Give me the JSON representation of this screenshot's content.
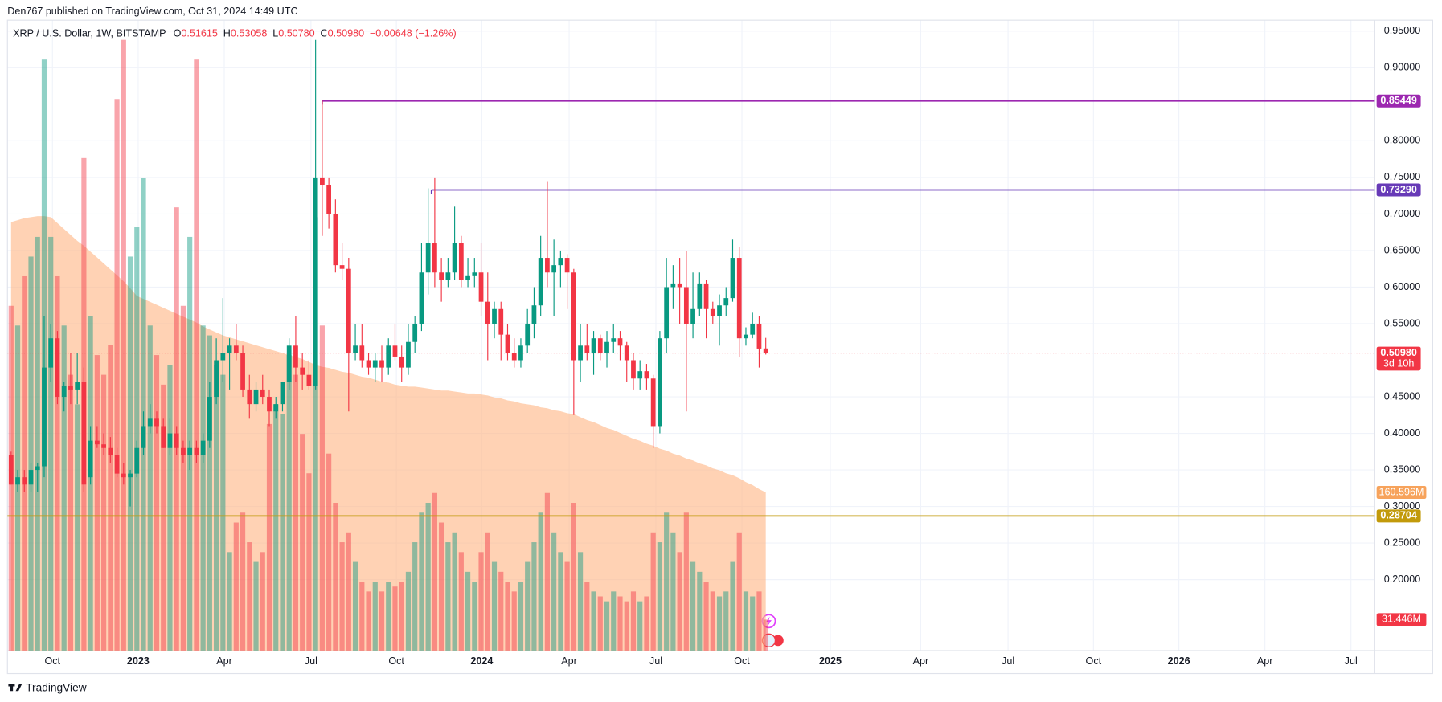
{
  "header": {
    "published": "Den767 published on TradingView.com, Oct 31, 2024 14:49 UTC",
    "footer": "TradingView"
  },
  "legend": {
    "symbol": "XRP / U.S. Dollar, 1W, BITSTAMP",
    "fields": [
      {
        "key": "O",
        "value": "0.51615"
      },
      {
        "key": "H",
        "value": "0.53058"
      },
      {
        "key": "L",
        "value": "0.50780"
      },
      {
        "key": "C",
        "value": "0.50980"
      }
    ],
    "change": "−0.00648 (−1.26%)"
  },
  "chart_data": {
    "type": "candlestick",
    "x": [
      0,
      1,
      2,
      3,
      4,
      5,
      6,
      7,
      8,
      9,
      10,
      11,
      12,
      13,
      14,
      15,
      16,
      17,
      18,
      19,
      20,
      21,
      22,
      23,
      24,
      25,
      26,
      27,
      28,
      29,
      30,
      31,
      32,
      33,
      34,
      35,
      36,
      37,
      38,
      39,
      40,
      41,
      42,
      43,
      44,
      45,
      46,
      47,
      48,
      49,
      50,
      51,
      52,
      53,
      54,
      55,
      56,
      57,
      58,
      59,
      60,
      61,
      62,
      63,
      64,
      65,
      66,
      67,
      68,
      69,
      70,
      71,
      72,
      73,
      74,
      75,
      76,
      77,
      78,
      79,
      80,
      81,
      82,
      83,
      84,
      85,
      86,
      87,
      88,
      89,
      90,
      91,
      92,
      93,
      94,
      95,
      96,
      97,
      98,
      99,
      100,
      101,
      102,
      103,
      104,
      105,
      106,
      107,
      108,
      109,
      110,
      111,
      112,
      113,
      114
    ],
    "open": [
      0.37,
      0.33,
      0.34,
      0.33,
      0.35,
      0.355,
      0.49,
      0.53,
      0.45,
      0.465,
      0.46,
      0.47,
      0.34,
      0.39,
      0.385,
      0.38,
      0.37,
      0.345,
      0.34,
      0.345,
      0.38,
      0.41,
      0.42,
      0.41,
      0.38,
      0.4,
      0.38,
      0.37,
      0.38,
      0.37,
      0.39,
      0.45,
      0.5,
      0.51,
      0.52,
      0.51,
      0.46,
      0.44,
      0.46,
      0.45,
      0.43,
      0.44,
      0.47,
      0.52,
      0.49,
      0.48,
      0.465,
      0.75,
      0.74,
      0.7,
      0.63,
      0.625,
      0.51,
      0.52,
      0.5,
      0.49,
      0.5,
      0.49,
      0.52,
      0.505,
      0.49,
      0.525,
      0.55,
      0.62,
      0.66,
      0.62,
      0.61,
      0.62,
      0.66,
      0.61,
      0.615,
      0.62,
      0.58,
      0.55,
      0.57,
      0.535,
      0.51,
      0.5,
      0.52,
      0.55,
      0.575,
      0.64,
      0.62,
      0.63,
      0.64,
      0.62,
      0.5,
      0.52,
      0.51,
      0.53,
      0.51,
      0.525,
      0.53,
      0.52,
      0.5,
      0.475,
      0.485,
      0.475,
      0.41,
      0.53,
      0.6,
      0.605,
      0.6,
      0.55,
      0.57,
      0.605,
      0.57,
      0.56,
      0.575,
      0.585,
      0.64,
      0.53,
      0.535,
      0.55,
      0.51615
    ],
    "high": [
      0.375,
      0.35,
      0.35,
      0.36,
      0.36,
      0.56,
      0.55,
      0.54,
      0.47,
      0.51,
      0.51,
      0.49,
      0.41,
      0.41,
      0.4,
      0.395,
      0.38,
      0.36,
      0.35,
      0.39,
      0.43,
      0.44,
      0.43,
      0.42,
      0.42,
      0.41,
      0.39,
      0.39,
      0.39,
      0.4,
      0.47,
      0.53,
      0.585,
      0.53,
      0.55,
      0.52,
      0.48,
      0.47,
      0.48,
      0.46,
      0.45,
      0.47,
      0.53,
      0.56,
      0.51,
      0.5,
      0.938,
      0.855,
      0.75,
      0.72,
      0.66,
      0.64,
      0.55,
      0.55,
      0.51,
      0.51,
      0.52,
      0.53,
      0.55,
      0.52,
      0.55,
      0.56,
      0.66,
      0.735,
      0.75,
      0.64,
      0.64,
      0.71,
      0.67,
      0.64,
      0.64,
      0.66,
      0.62,
      0.58,
      0.58,
      0.55,
      0.53,
      0.53,
      0.57,
      0.6,
      0.67,
      0.745,
      0.665,
      0.65,
      0.645,
      0.625,
      0.55,
      0.55,
      0.54,
      0.535,
      0.54,
      0.55,
      0.54,
      0.525,
      0.51,
      0.5,
      0.495,
      0.48,
      0.54,
      0.64,
      0.63,
      0.64,
      0.65,
      0.62,
      0.62,
      0.61,
      0.58,
      0.59,
      0.6,
      0.665,
      0.655,
      0.545,
      0.565,
      0.56,
      0.53058
    ],
    "low": [
      0.33,
      0.32,
      0.32,
      0.32,
      0.32,
      0.34,
      0.47,
      0.44,
      0.43,
      0.44,
      0.44,
      0.32,
      0.33,
      0.38,
      0.37,
      0.36,
      0.34,
      0.33,
      0.3,
      0.34,
      0.37,
      0.4,
      0.4,
      0.38,
      0.37,
      0.37,
      0.36,
      0.35,
      0.36,
      0.36,
      0.38,
      0.44,
      0.47,
      0.46,
      0.5,
      0.45,
      0.42,
      0.43,
      0.44,
      0.41,
      0.42,
      0.43,
      0.46,
      0.47,
      0.46,
      0.46,
      0.46,
      0.67,
      0.68,
      0.62,
      0.61,
      0.43,
      0.5,
      0.49,
      0.48,
      0.47,
      0.47,
      0.48,
      0.5,
      0.47,
      0.48,
      0.51,
      0.54,
      0.59,
      0.6,
      0.58,
      0.6,
      0.61,
      0.6,
      0.6,
      0.6,
      0.56,
      0.5,
      0.53,
      0.5,
      0.5,
      0.49,
      0.49,
      0.51,
      0.53,
      0.56,
      0.6,
      0.56,
      0.6,
      0.57,
      0.425,
      0.47,
      0.5,
      0.48,
      0.5,
      0.49,
      0.51,
      0.5,
      0.47,
      0.46,
      0.46,
      0.46,
      0.38,
      0.4,
      0.51,
      0.57,
      0.55,
      0.43,
      0.53,
      0.56,
      0.53,
      0.55,
      0.52,
      0.56,
      0.58,
      0.505,
      0.52,
      0.53,
      0.49,
      0.5078
    ],
    "close": [
      0.33,
      0.34,
      0.33,
      0.35,
      0.355,
      0.49,
      0.53,
      0.45,
      0.465,
      0.46,
      0.47,
      0.33,
      0.39,
      0.385,
      0.38,
      0.37,
      0.345,
      0.34,
      0.345,
      0.38,
      0.41,
      0.42,
      0.41,
      0.38,
      0.4,
      0.38,
      0.37,
      0.38,
      0.37,
      0.39,
      0.45,
      0.5,
      0.51,
      0.52,
      0.51,
      0.46,
      0.44,
      0.46,
      0.45,
      0.43,
      0.44,
      0.47,
      0.52,
      0.49,
      0.48,
      0.465,
      0.75,
      0.74,
      0.7,
      0.63,
      0.625,
      0.51,
      0.52,
      0.5,
      0.49,
      0.5,
      0.49,
      0.52,
      0.505,
      0.49,
      0.525,
      0.55,
      0.62,
      0.66,
      0.62,
      0.61,
      0.62,
      0.66,
      0.61,
      0.615,
      0.62,
      0.58,
      0.55,
      0.57,
      0.535,
      0.51,
      0.5,
      0.52,
      0.55,
      0.575,
      0.64,
      0.62,
      0.63,
      0.64,
      0.62,
      0.5,
      0.52,
      0.51,
      0.53,
      0.51,
      0.525,
      0.53,
      0.52,
      0.5,
      0.475,
      0.485,
      0.475,
      0.41,
      0.53,
      0.6,
      0.605,
      0.6,
      0.55,
      0.57,
      0.605,
      0.57,
      0.56,
      0.575,
      0.585,
      0.64,
      0.53,
      0.535,
      0.55,
      0.516,
      0.5098
    ],
    "up_color": "#089981",
    "down_color": "#f23645",
    "xlim": [
      -0.55,
      206
    ],
    "xticks": [
      {
        "value": 6.25,
        "label": "Oct"
      },
      {
        "value": 19.2,
        "label": "2023"
      },
      {
        "value": 32.2,
        "label": "Apr"
      },
      {
        "value": 45.3,
        "label": "Jul"
      },
      {
        "value": 58.2,
        "label": "Oct"
      },
      {
        "value": 71.1,
        "label": "2024"
      },
      {
        "value": 84.3,
        "label": "Apr"
      },
      {
        "value": 97.4,
        "label": "Jul"
      },
      {
        "value": 110.4,
        "label": "Oct"
      },
      {
        "value": 123.75,
        "label": "2025"
      },
      {
        "value": 137.4,
        "label": "Apr"
      },
      {
        "value": 150.6,
        "label": "Jul"
      },
      {
        "value": 163.5,
        "label": "Oct"
      },
      {
        "value": 176.4,
        "label": "2026"
      },
      {
        "value": 189.4,
        "label": "Apr"
      },
      {
        "value": 202.4,
        "label": "Jul"
      }
    ],
    "ylim": [
      0.103,
      0.965
    ],
    "yticks": [
      {
        "value": 0.2,
        "label": "0.20000"
      },
      {
        "value": 0.25,
        "label": "0.25000"
      },
      {
        "value": 0.3,
        "label": "0.30000"
      },
      {
        "value": 0.35,
        "label": "0.35000"
      },
      {
        "value": 0.4,
        "label": "0.40000"
      },
      {
        "value": 0.45,
        "label": "0.45000"
      },
      {
        "value": 0.55,
        "label": "0.55000"
      },
      {
        "value": 0.6,
        "label": "0.60000"
      },
      {
        "value": 0.65,
        "label": "0.65000"
      },
      {
        "value": 0.7,
        "label": "0.70000"
      },
      {
        "value": 0.75,
        "label": "0.75000"
      },
      {
        "value": 0.8,
        "label": "0.80000"
      },
      {
        "value": 0.9,
        "label": "0.90000"
      },
      {
        "value": 0.95,
        "label": "0.95000"
      }
    ],
    "grid": true,
    "volume": {
      "values": [
        350,
        330,
        380,
        400,
        420,
        600,
        420,
        380,
        330,
        280,
        250,
        500,
        340,
        300,
        280,
        310,
        560,
        620,
        400,
        430,
        480,
        330,
        300,
        270,
        290,
        450,
        350,
        420,
        600,
        330,
        320,
        290,
        280,
        100,
        130,
        140,
        110,
        90,
        100,
        230,
        250,
        240,
        300,
        280,
        220,
        180,
        440,
        330,
        200,
        150,
        110,
        120,
        90,
        70,
        60,
        70,
        60,
        70,
        65,
        70,
        80,
        110,
        140,
        150,
        160,
        130,
        110,
        120,
        100,
        80,
        70,
        100,
        120,
        90,
        80,
        70,
        60,
        70,
        90,
        110,
        140,
        160,
        120,
        100,
        90,
        150,
        100,
        70,
        60,
        55,
        50,
        60,
        55,
        50,
        60,
        50,
        55,
        120,
        110,
        140,
        120,
        100,
        140,
        90,
        80,
        70,
        60,
        55,
        60,
        90,
        120,
        60,
        55,
        60,
        31.446
      ],
      "ma": [
        435,
        437,
        439,
        440,
        441,
        441,
        440,
        434,
        428,
        422,
        416,
        411,
        405,
        399,
        393,
        387,
        381,
        375,
        368,
        360,
        357,
        354,
        351,
        348,
        345,
        342,
        339,
        336,
        333,
        329,
        326,
        323,
        320,
        318,
        316,
        314,
        312,
        310,
        308,
        306,
        304,
        302,
        300,
        298,
        296,
        293,
        290,
        288,
        287,
        285,
        283,
        282,
        280,
        278,
        277,
        275,
        273,
        272,
        270,
        269,
        268,
        268,
        267,
        266,
        265,
        264,
        264,
        263,
        262,
        261,
        261,
        260,
        259,
        257,
        256,
        254,
        253,
        251,
        250,
        249,
        247,
        246,
        244,
        243,
        241,
        240,
        237,
        234,
        232,
        229,
        226,
        224,
        221,
        218,
        215,
        213,
        210,
        208,
        205,
        203,
        200,
        198,
        195,
        193,
        190,
        188,
        185,
        183,
        180,
        178,
        175,
        171,
        168,
        164,
        160.596
      ],
      "ma_color": "#ffb482",
      "y2lim": [
        0,
        640
      ],
      "last_label": {
        "value": 31.446,
        "label": "31.446M"
      },
      "ma_label": {
        "value": 160.596,
        "label": "160.596M"
      }
    },
    "hlines": [
      {
        "value": 0.85449,
        "label": "0.85449",
        "color": "#9c27b0",
        "x_start": 47
      },
      {
        "value": 0.7329,
        "label": "0.73290",
        "color": "#673ab7",
        "x_start": 63.5
      },
      {
        "value": 0.28704,
        "label": "0.28704",
        "color": "#c29a0a",
        "x_start": -0.55
      }
    ],
    "last_price": {
      "value": 0.5098,
      "label": "0.50980",
      "countdown": "3d 10h",
      "color": "#f23645"
    }
  }
}
